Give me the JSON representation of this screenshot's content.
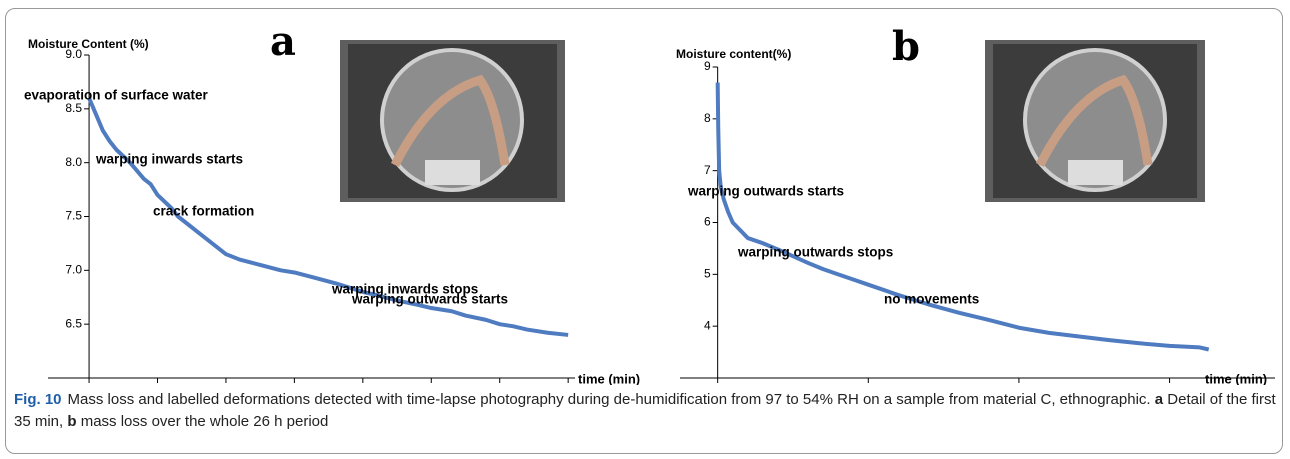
{
  "chart_data": [
    {
      "type": "line",
      "panel": "a",
      "y_label": "Moisture Content (%)",
      "x_label": "time (min)",
      "color": "#4f7cc0",
      "x": [
        0,
        0.5,
        1,
        1.5,
        2,
        3,
        4,
        4.5,
        5,
        6,
        6.5,
        7,
        8,
        8.5,
        9,
        10,
        11,
        12.5,
        14,
        15,
        16.5,
        18,
        19,
        20,
        21,
        22.5,
        24,
        25,
        26.5,
        27.5,
        29,
        30,
        31,
        32,
        33.5,
        35
      ],
      "values": [
        8.6,
        8.45,
        8.3,
        8.2,
        8.12,
        8.0,
        7.85,
        7.8,
        7.7,
        7.58,
        7.5,
        7.45,
        7.35,
        7.3,
        7.25,
        7.15,
        7.1,
        7.05,
        7.0,
        6.98,
        6.93,
        6.88,
        6.84,
        6.8,
        6.77,
        6.72,
        6.68,
        6.65,
        6.62,
        6.58,
        6.54,
        6.5,
        6.48,
        6.45,
        6.42,
        6.4
      ],
      "xlim": [
        -3,
        35.5
      ],
      "ylim": [
        6,
        9
      ],
      "xticks": [
        0,
        5,
        10,
        15,
        20,
        25,
        30,
        35
      ],
      "yticks": [
        6.5,
        {
          "value": 7,
          "label": "7.0"
        },
        7.5,
        {
          "value": 8,
          "label": "8.0"
        },
        8.5,
        {
          "value": 9,
          "label": "9.0"
        }
      ],
      "annotations": [
        "evaporation of surface water",
        "warping inwards starts",
        "crack formation",
        "warping inwards stops",
        "warping outwards starts"
      ]
    },
    {
      "type": "line",
      "panel": "b",
      "y_label": "Moisture content(%)",
      "x_label": "time (min)",
      "color": "#4f7cc0",
      "x": [
        0,
        2,
        5,
        10,
        20,
        35,
        50,
        75,
        100,
        150,
        200,
        250,
        300,
        350,
        400,
        450,
        500,
        600,
        700,
        800,
        900,
        1000,
        1100,
        1200,
        1300,
        1400,
        1500,
        1600,
        1630
      ],
      "values": [
        8.7,
        7.8,
        7.0,
        6.7,
        6.45,
        6.2,
        6.0,
        5.85,
        5.7,
        5.6,
        5.48,
        5.35,
        5.22,
        5.1,
        5.0,
        4.9,
        4.8,
        4.6,
        4.42,
        4.26,
        4.12,
        3.97,
        3.87,
        3.8,
        3.73,
        3.67,
        3.62,
        3.59,
        3.55
      ],
      "xlim": [
        -125,
        1850
      ],
      "ylim": [
        3,
        9
      ],
      "xticks": [
        0,
        500,
        1000,
        1500
      ],
      "yticks": [
        4,
        5,
        6,
        7,
        8,
        9
      ],
      "annotations": [
        "warping outwards starts",
        "warping outwards stops",
        "no movements"
      ]
    }
  ],
  "figure": {
    "label": "Fig. 10",
    "caption": [
      "Mass loss and labelled deformations detected with time-lapse photography during de-humidification from 97 to 54% RH on a sample from material C, ethnographic.",
      "a",
      "Detail of the first 35 min,",
      "b",
      "mass loss over the whole 26 h period"
    ]
  }
}
